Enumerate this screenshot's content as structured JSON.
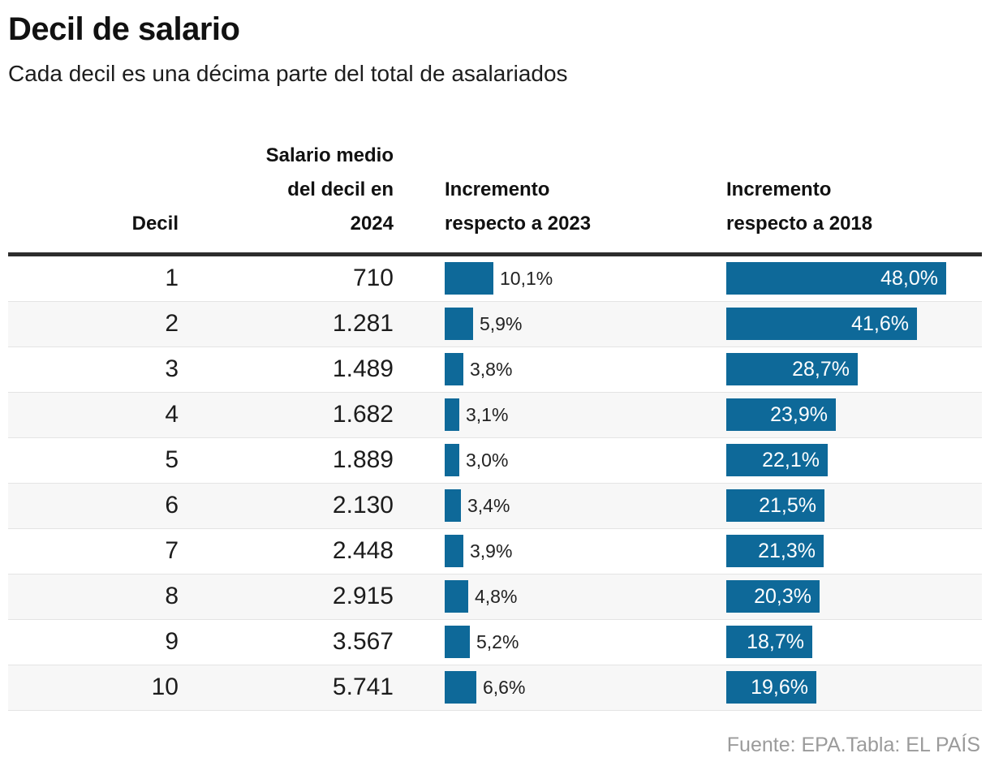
{
  "header": {
    "title": "Decil de salario",
    "subtitle": "Cada decil es una décima parte del total de asalariados"
  },
  "table": {
    "header": {
      "decil": "Decil",
      "salario_lines": [
        "Salario medio",
        "del decil en",
        "2024"
      ],
      "inc2023_lines": [
        "Incremento",
        "respecto a 2023"
      ],
      "inc2018_lines": [
        "Incremento",
        "respecto a 2018"
      ]
    },
    "rows": [
      {
        "decil": "1",
        "salario": "710",
        "inc2023_label": "10,1%",
        "inc2023_value": 10.1,
        "inc2018_label": "48,0%",
        "inc2018_value": 48.0
      },
      {
        "decil": "2",
        "salario": "1.281",
        "inc2023_label": "5,9%",
        "inc2023_value": 5.9,
        "inc2018_label": "41,6%",
        "inc2018_value": 41.6
      },
      {
        "decil": "3",
        "salario": "1.489",
        "inc2023_label": "3,8%",
        "inc2023_value": 3.8,
        "inc2018_label": "28,7%",
        "inc2018_value": 28.7
      },
      {
        "decil": "4",
        "salario": "1.682",
        "inc2023_label": "3,1%",
        "inc2023_value": 3.1,
        "inc2018_label": "23,9%",
        "inc2018_value": 23.9
      },
      {
        "decil": "5",
        "salario": "1.889",
        "inc2023_label": "3,0%",
        "inc2023_value": 3.0,
        "inc2018_label": "22,1%",
        "inc2018_value": 22.1
      },
      {
        "decil": "6",
        "salario": "2.130",
        "inc2023_label": "3,4%",
        "inc2023_value": 3.4,
        "inc2018_label": "21,5%",
        "inc2018_value": 21.5
      },
      {
        "decil": "7",
        "salario": "2.448",
        "inc2023_label": "3,9%",
        "inc2023_value": 3.9,
        "inc2018_label": "21,3%",
        "inc2018_value": 21.3
      },
      {
        "decil": "8",
        "salario": "2.915",
        "inc2023_label": "4,8%",
        "inc2023_value": 4.8,
        "inc2018_label": "20,3%",
        "inc2018_value": 20.3
      },
      {
        "decil": "9",
        "salario": "3.567",
        "inc2023_label": "5,2%",
        "inc2023_value": 5.2,
        "inc2018_label": "18,7%",
        "inc2018_value": 18.7
      },
      {
        "decil": "10",
        "salario": "5.741",
        "inc2023_label": "6,6%",
        "inc2023_value": 6.6,
        "inc2018_label": "19,6%",
        "inc2018_value": 19.6
      }
    ]
  },
  "footer": {
    "source": "Fuente: EPA.Tabla: EL PAÍS"
  },
  "colors": {
    "bar_blue": "#0e6999",
    "header_rule": "#2d2d2d",
    "alt_row": "#f7f7f7",
    "footer_gray": "#9b9b9b"
  },
  "chart_data": {
    "type": "table",
    "title": "Decil de salario",
    "subtitle": "Cada decil es una décima parte del total de asalariados",
    "columns": [
      "Decil",
      "Salario medio del decil en 2024",
      "Incremento respecto a 2023",
      "Incremento respecto a 2018"
    ],
    "categories": [
      1,
      2,
      3,
      4,
      5,
      6,
      7,
      8,
      9,
      10
    ],
    "series": [
      {
        "name": "Salario medio del decil en 2024",
        "values": [
          710,
          1281,
          1489,
          1682,
          1889,
          2130,
          2448,
          2915,
          3567,
          5741
        ]
      },
      {
        "name": "Incremento respecto a 2023 (%)",
        "values": [
          10.1,
          5.9,
          3.8,
          3.1,
          3.0,
          3.4,
          3.9,
          4.8,
          5.2,
          6.6
        ]
      },
      {
        "name": "Incremento respecto a 2018 (%)",
        "values": [
          48.0,
          41.6,
          28.7,
          23.9,
          22.1,
          21.5,
          21.3,
          20.3,
          18.7,
          19.6
        ]
      }
    ],
    "bar_columns": [
      "Incremento respecto a 2023",
      "Incremento respecto a 2018"
    ],
    "legend_position": "none",
    "grid": false,
    "source": "Fuente: EPA.Tabla: EL PAÍS"
  }
}
